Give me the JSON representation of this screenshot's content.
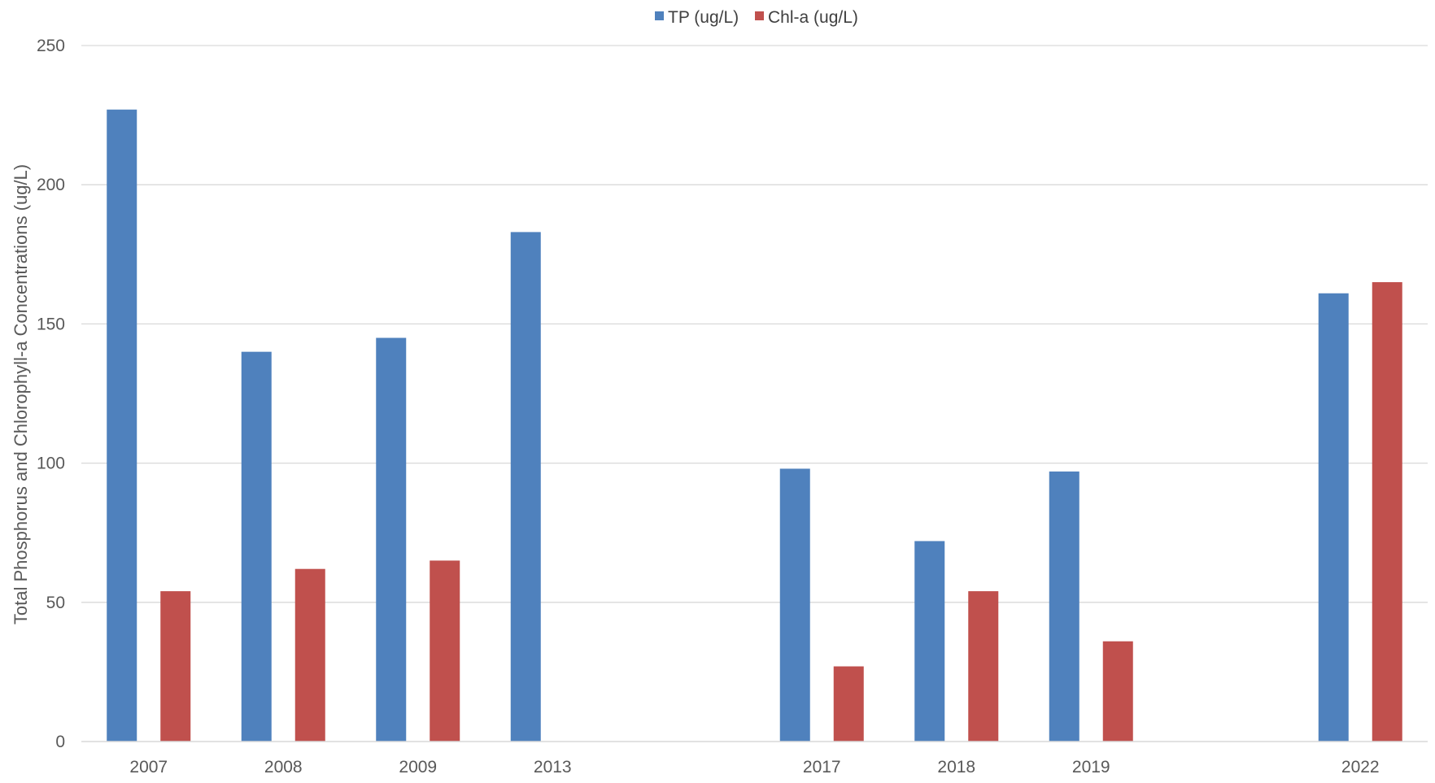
{
  "chart_data": {
    "type": "bar",
    "title": "",
    "xlabel": "",
    "ylabel": "Total Phosphorus and Chlorophyll-a Concentrations (ug/L)",
    "categories": [
      "2007",
      "2008",
      "2009",
      "2013",
      "",
      "2017",
      "2018",
      "2019",
      "",
      "2022"
    ],
    "series": [
      {
        "name": "TP (ug/L)",
        "color": "#4F81BD",
        "values": [
          227,
          140,
          145,
          183,
          null,
          98,
          72,
          97,
          null,
          161
        ]
      },
      {
        "name": "Chl-a (ug/L)",
        "color": "#C0504D",
        "values": [
          54,
          62,
          65,
          null,
          null,
          27,
          54,
          36,
          null,
          165
        ]
      }
    ],
    "ylim": [
      0,
      250
    ],
    "yticks": [
      0,
      50,
      100,
      150,
      200,
      250
    ],
    "grid": true,
    "gridColor": "#D9D9D9",
    "legend": "top-center"
  }
}
